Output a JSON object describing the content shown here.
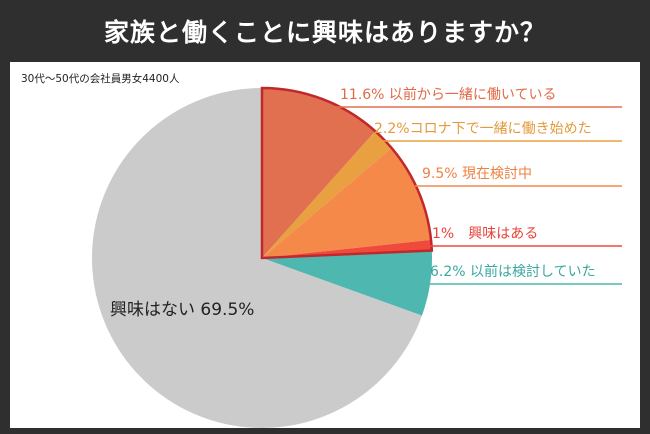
{
  "title": "家族と働くことに興味はありますか？",
  "subtitle": "30代～50代の会社員男女4400人",
  "chart_data": {
    "type": "pie",
    "title": "家族と働くことに興味はありますか？",
    "subtitle": "30代～50代の会社員男女4400人",
    "slices": [
      {
        "label": "11.6% 以前から一緒に働いている",
        "value": 11.6,
        "color": "#e07050",
        "text_color": "#e06a48"
      },
      {
        "label": "2.2%コロナ下で一緒に働き始めた",
        "value": 2.2,
        "color": "#e8a040",
        "text_color": "#e49a3c"
      },
      {
        "label": "9.5% 現在検討中",
        "value": 9.5,
        "color": "#f4894a",
        "text_color": "#ee8244"
      },
      {
        "label": "1%　興味はある",
        "value": 1,
        "color": "#f04a3c",
        "text_color": "#e8443a"
      },
      {
        "label": "6.2% 以前は検討していた",
        "value": 6.2,
        "color": "#4eb8b0",
        "text_color": "#3aa8a0"
      },
      {
        "label": "興味はない 69.5%",
        "value": 69.5,
        "color": "#cbcbcb",
        "text_color": "#222222"
      }
    ],
    "highlight_border_color": "#c0282c"
  }
}
